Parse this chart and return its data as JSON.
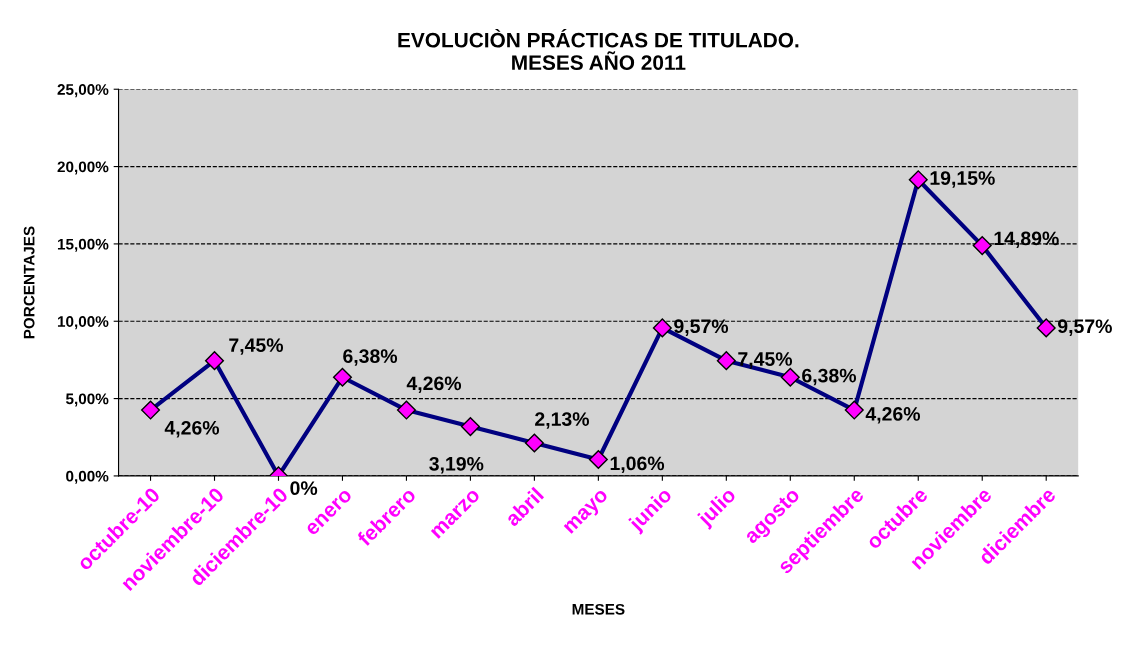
{
  "chart_data": {
    "type": "line",
    "title": "EVOLUCIÒN PRÁCTICAS DE TITULADO.\nMESES AÑO 2011",
    "xlabel": "MESES",
    "ylabel": "PORCENTAJES",
    "categories": [
      "octubre-10",
      "noviembre-10",
      "diciembre-10",
      "enero",
      "febrero",
      "marzo",
      "abril",
      "mayo",
      "junio",
      "julio",
      "agosto",
      "septiembre",
      "octubre",
      "noviembre",
      "diciembre"
    ],
    "series": [
      {
        "color": "#000080",
        "values": [
          4.26,
          7.45,
          0,
          6.38,
          4.26,
          3.19,
          2.13,
          1.06,
          9.57,
          7.45,
          6.38,
          4.26,
          19.15,
          14.89,
          9.57
        ],
        "value_labels": [
          "4,26%",
          "7,45%",
          "0%",
          "6,38%",
          "4,26%",
          "3,19%",
          "2,13%",
          "1,06%",
          "9,57%",
          "7,45%",
          "6,38%",
          "4,26%",
          "19,15%",
          "14,89%",
          "9,57%"
        ]
      }
    ],
    "ylim": [
      0,
      25
    ],
    "yticks": [
      {
        "value": 0,
        "label": "0,00%"
      },
      {
        "value": 5,
        "label": "5,00%"
      },
      {
        "value": 10,
        "label": "10,00%"
      },
      {
        "value": 15,
        "label": "15,00%"
      },
      {
        "value": 20,
        "label": "20,00%"
      },
      {
        "value": 25,
        "label": "25,00%"
      }
    ],
    "grid": "y",
    "marker": "diamond",
    "line_style": "solid",
    "legend": false
  }
}
